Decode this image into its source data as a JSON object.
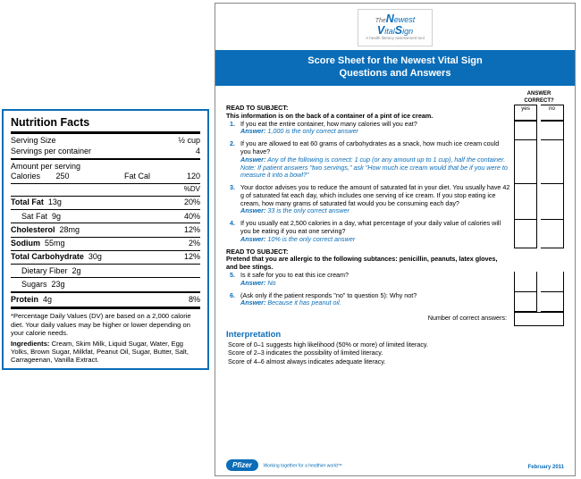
{
  "colors": {
    "brand_blue": "#0b6db8",
    "border_gray": "#888888",
    "text": "#000000",
    "bg": "#ffffff"
  },
  "nutrition": {
    "title": "Nutrition Facts",
    "serving_size_label": "Serving Size",
    "serving_size_value": "½ cup",
    "servings_per_container_label": "Servings per container",
    "servings_per_container_value": "4",
    "amount_per_serving": "Amount per serving",
    "calories_label": "Calories",
    "calories_value": "250",
    "fatcal_label": "Fat Cal",
    "fatcal_value": "120",
    "dv_header": "%DV",
    "rows": [
      {
        "name": "Total Fat",
        "amount": "13g",
        "dv": "20%",
        "bold": true
      },
      {
        "name": "Sat Fat",
        "amount": "9g",
        "dv": "40%",
        "indent": true
      },
      {
        "name": "Cholesterol",
        "amount": "28mg",
        "dv": "12%",
        "bold": true
      },
      {
        "name": "Sodium",
        "amount": "55mg",
        "dv": "2%",
        "bold": true
      },
      {
        "name": "Total Carbohydrate",
        "amount": "30g",
        "dv": "12%",
        "bold": true
      },
      {
        "name": "Dietary Fiber",
        "amount": "2g",
        "dv": "",
        "indent": true
      },
      {
        "name": "Sugars",
        "amount": "23g",
        "dv": "",
        "indent": true
      }
    ],
    "protein_label": "Protein",
    "protein_amount": "4g",
    "protein_dv": "8%",
    "footnote": "*Percentage Daily Values (DV) are based on a 2,000 calorie diet. Your daily values may be higher or lower depending on your calorie needs.",
    "ingredients_label": "Ingredients:",
    "ingredients": "Cream, Skim Milk, Liquid Sugar, Water, Egg Yolks, Brown Sugar, Milkfat, Peanut Oil, Sugar, Butter, Salt, Carrageenan, Vanilla Extract."
  },
  "sheet": {
    "logo": {
      "the": "The",
      "newest": "Newest",
      "vital": "Vital",
      "sign": "Sign",
      "tag": "A health literacy assessment tool"
    },
    "banner_l1": "Score Sheet for the Newest Vital Sign",
    "banner_l2": "Questions and Answers",
    "answer_correct_hdr": "ANSWER CORRECT?",
    "yes": "yes",
    "no": "no",
    "read1_l1": "READ TO SUBJECT:",
    "read1_l2": "This information is on the back of a container of a pint of ice cream.",
    "q": [
      {
        "n": "1.",
        "text": "If you eat the entire container, how many calories will you eat?",
        "answer": "1,000 is the only correct answer"
      },
      {
        "n": "2.",
        "text": "If you are allowed to eat 60 grams of carbohydrates as a snack, how much ice cream could you have?",
        "answer": "Any of the following is correct: 1 cup (or any amount up to 1 cup), half the container. Note: If patient answers \"two servings,\" ask \"How much ice cream would that be if you were to measure it into a bowl?\""
      },
      {
        "n": "3.",
        "text": "Your doctor advises you to reduce the amount of saturated fat in your diet. You usually have 42 g of saturated fat each day, which includes one serving of ice cream. If you stop eating ice cream, how many grams of saturated fat would you be consuming each day?",
        "answer": "33 is the only correct answer"
      },
      {
        "n": "4.",
        "text": "If you usually eat 2,500 calories in a day, what percentage of your daily value of calories will you be eating if you eat one serving?",
        "answer": "10% is the only correct answer"
      }
    ],
    "read2_l1": "READ TO SUBJECT:",
    "read2_l2": "Pretend that you are allergic to the following subtances: penicillin, peanuts, latex gloves, and bee stings.",
    "q5": {
      "n": "5.",
      "text": "Is it safe for you to eat this ice cream?",
      "answer": "No"
    },
    "q6": {
      "n": "6.",
      "text": "(Ask only if the patient responds \"no\" to question 5): Why not?",
      "answer": "Because it has peanut oil."
    },
    "total_label": "Number of correct answers:",
    "interp_h": "Interpretation",
    "interp": [
      "Score of 0–1 suggests high likelihood (50% or more) of limited literacy.",
      "Score of 2–3 indicates the possibility of limited literacy.",
      "Score of 4–6 almost always indicates adequate literacy."
    ],
    "footer_brand": "Pfizer",
    "footer_tag": "Working together for a healthier world™",
    "footer_date": "February 2011",
    "answer_label": "Answer:"
  }
}
